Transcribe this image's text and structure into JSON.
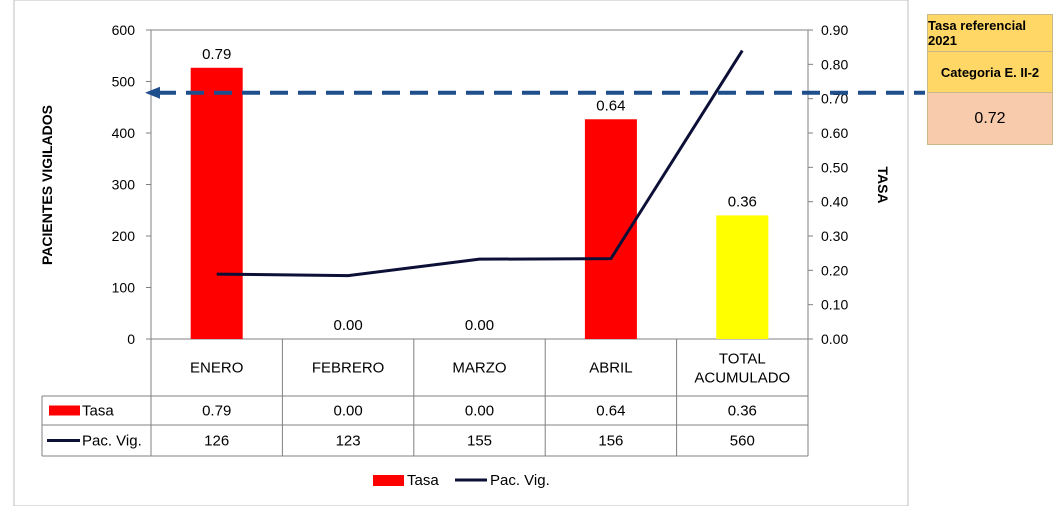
{
  "chart_data": {
    "type": "bar",
    "categories": [
      "ENERO",
      "FEBRERO",
      "MARZO",
      "ABRIL",
      "TOTAL ACUMULADO"
    ],
    "category_lines": [
      [
        "ENERO"
      ],
      [
        "FEBRERO"
      ],
      [
        "MARZO"
      ],
      [
        "ABRIL"
      ],
      [
        "TOTAL",
        "ACUMULADO"
      ]
    ],
    "series": [
      {
        "name": "Tasa",
        "type": "bar",
        "axis": "right",
        "values": [
          0.79,
          0.0,
          0.0,
          0.64,
          0.36
        ],
        "value_labels": [
          "0.79",
          "0.00",
          "0.00",
          "0.64",
          "0.36"
        ],
        "colors": [
          "#ff0000",
          "#ff0000",
          "#ff0000",
          "#ff0000",
          "#ffff00"
        ]
      },
      {
        "name": "Pac. Vig.",
        "type": "line",
        "axis": "left",
        "values": [
          126,
          123,
          155,
          156,
          560
        ],
        "color": "#0d1036"
      }
    ],
    "y_left": {
      "label": "PACIENTES VIGILADOS",
      "ticks": [
        "0",
        "100",
        "200",
        "300",
        "400",
        "500",
        "600"
      ],
      "range": [
        0,
        600
      ]
    },
    "y_right": {
      "label": "TASA",
      "ticks": [
        "0.00",
        "0.10",
        "0.20",
        "0.30",
        "0.40",
        "0.50",
        "0.60",
        "0.70",
        "0.80",
        "0.90"
      ],
      "range": [
        0,
        0.9
      ]
    },
    "data_table": {
      "rows": [
        {
          "name": "Tasa",
          "cells": [
            "0.79",
            "0.00",
            "0.00",
            "0.64",
            "0.36"
          ]
        },
        {
          "name": "Pac. Vig.",
          "cells": [
            "126",
            "123",
            "155",
            "156",
            "560"
          ]
        }
      ]
    },
    "legend": {
      "position": "bottom",
      "entries": [
        "Tasa",
        "Pac. Vig."
      ]
    },
    "reference_line": {
      "value": 0.72,
      "axis": "right",
      "style": "dashed",
      "color": "#1f4e8c"
    }
  },
  "reference_box": {
    "title": "Tasa referencial 2021",
    "category": "Categoria E. II-2",
    "value": "0.72"
  }
}
